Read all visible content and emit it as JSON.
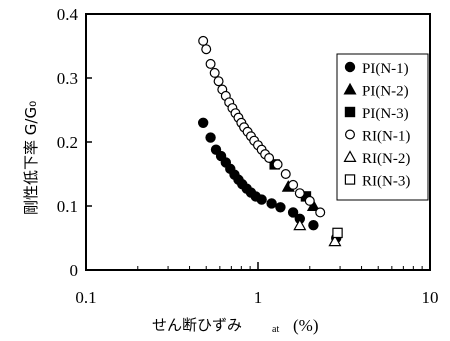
{
  "chart_data": {
    "type": "scatter",
    "xscale": "log",
    "xlim": [
      0.1,
      10
    ],
    "ylim": [
      0,
      0.4
    ],
    "x_ticks": [
      "0.1",
      "1",
      "10"
    ],
    "y_ticks": [
      "0",
      "0.1",
      "0.2",
      "0.3",
      "0.4"
    ],
    "xlabel": "せん断ひずみ",
    "xlabel_sub": "at",
    "xlabel_unit": "(%)",
    "ylabel": "剛性低下率 G/G₀",
    "legend_position": "right",
    "series": [
      {
        "name": "PI(N-1)",
        "marker": "circle-filled",
        "points": [
          [
            0.48,
            0.23
          ],
          [
            0.53,
            0.207
          ],
          [
            0.57,
            0.188
          ],
          [
            0.61,
            0.178
          ],
          [
            0.65,
            0.168
          ],
          [
            0.69,
            0.158
          ],
          [
            0.73,
            0.149
          ],
          [
            0.77,
            0.141
          ],
          [
            0.81,
            0.134
          ],
          [
            0.86,
            0.127
          ],
          [
            0.91,
            0.121
          ],
          [
            0.97,
            0.115
          ],
          [
            1.05,
            0.11
          ],
          [
            1.2,
            0.104
          ],
          [
            1.35,
            0.098
          ],
          [
            1.6,
            0.09
          ],
          [
            1.75,
            0.08
          ],
          [
            2.1,
            0.07
          ],
          [
            2.85,
            0.05
          ]
        ]
      },
      {
        "name": "PI(N-2)",
        "marker": "triangle-filled",
        "points": [
          [
            1.5,
            0.13
          ],
          [
            2.1,
            0.1
          ]
        ]
      },
      {
        "name": "PI(N-3)",
        "marker": "square-filled",
        "points": [
          [
            1.25,
            0.165
          ],
          [
            1.9,
            0.115
          ]
        ]
      },
      {
        "name": "RI(N-1)",
        "marker": "circle-open",
        "points": [
          [
            0.48,
            0.358
          ],
          [
            0.5,
            0.345
          ],
          [
            0.53,
            0.322
          ],
          [
            0.56,
            0.308
          ],
          [
            0.59,
            0.295
          ],
          [
            0.62,
            0.282
          ],
          [
            0.65,
            0.272
          ],
          [
            0.68,
            0.262
          ],
          [
            0.71,
            0.253
          ],
          [
            0.74,
            0.245
          ],
          [
            0.77,
            0.238
          ],
          [
            0.8,
            0.23
          ],
          [
            0.83,
            0.223
          ],
          [
            0.87,
            0.216
          ],
          [
            0.91,
            0.209
          ],
          [
            0.95,
            0.202
          ],
          [
            1.0,
            0.195
          ],
          [
            1.05,
            0.188
          ],
          [
            1.1,
            0.181
          ],
          [
            1.16,
            0.175
          ],
          [
            1.3,
            0.165
          ],
          [
            1.45,
            0.15
          ],
          [
            1.6,
            0.133
          ],
          [
            1.75,
            0.12
          ],
          [
            2.0,
            0.108
          ],
          [
            2.3,
            0.09
          ]
        ]
      },
      {
        "name": "RI(N-2)",
        "marker": "triangle-open",
        "points": [
          [
            1.75,
            0.07
          ],
          [
            2.8,
            0.045
          ]
        ]
      },
      {
        "name": "RI(N-3)",
        "marker": "square-open",
        "points": [
          [
            2.9,
            0.058
          ]
        ]
      }
    ]
  }
}
